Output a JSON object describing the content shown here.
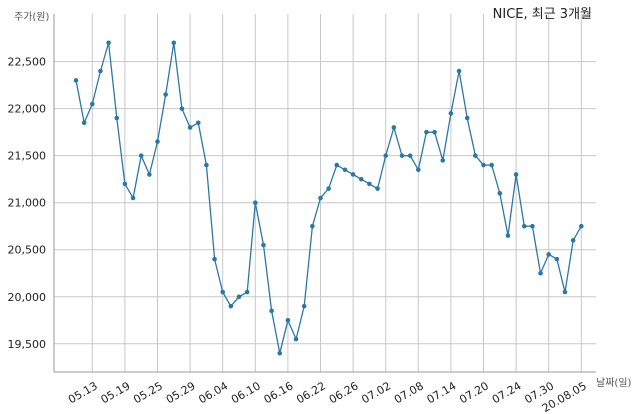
{
  "chart_data": {
    "type": "line",
    "title": "NICE, 최근 3개월",
    "ylabel": "주가(원)",
    "xlabel": "날짜(일)",
    "ylim": [
      19200,
      22900
    ],
    "yticks": [
      19500,
      20000,
      20500,
      21000,
      21500,
      22000,
      22500
    ],
    "ytick_labels": [
      "19,500",
      "20,000",
      "20,500",
      "21,000",
      "21,500",
      "22,000",
      "22,500"
    ],
    "xtick_labels": [
      "05.13",
      "05.19",
      "05.25",
      "05.29",
      "06.04",
      "06.10",
      "06.16",
      "06.22",
      "06.26",
      "07.02",
      "07.08",
      "07.14",
      "07.20",
      "07.24",
      "07.30",
      "20.08.05"
    ],
    "xtick_positions": [
      2,
      6,
      10,
      14,
      18,
      22,
      26,
      30,
      34,
      38,
      42,
      46,
      50,
      54,
      58,
      62
    ],
    "grid": true,
    "color": "#2b78a8",
    "series": [
      {
        "values": [
          22300,
          21850,
          22050,
          22400,
          22700,
          21900,
          21200,
          21050,
          21500,
          21300,
          21650,
          22150,
          22700,
          22000,
          21800,
          21850,
          21400,
          20400,
          20050,
          19900,
          20000,
          20050,
          21000,
          20550,
          19850,
          19400,
          19750,
          19550,
          19900,
          20750,
          21050,
          21150,
          21400,
          21350,
          21300,
          21250,
          21200,
          21150,
          21500,
          21800,
          21500,
          21500,
          21350,
          21750,
          21750,
          21450,
          21950,
          22400,
          21900,
          21500,
          21400,
          21400,
          21100,
          20650,
          21300,
          20750,
          20750,
          20250,
          20450,
          20400,
          20050,
          20600,
          20750
        ]
      }
    ]
  }
}
